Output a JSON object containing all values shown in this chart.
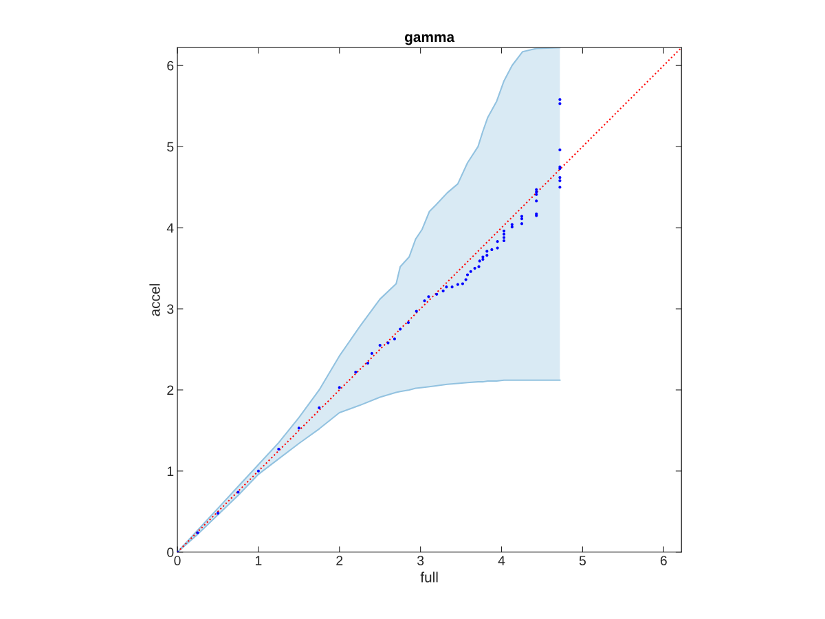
{
  "chart_data": {
    "type": "scatter",
    "title": "gamma",
    "xlabel": "full",
    "ylabel": "accel",
    "xlim": [
      0,
      6.22
    ],
    "ylim": [
      0,
      6.22
    ],
    "xticks": [
      0,
      1,
      2,
      3,
      4,
      5,
      6
    ],
    "yticks": [
      0,
      1,
      2,
      3,
      4,
      5,
      6
    ],
    "grid": false,
    "legend": false,
    "series": [
      {
        "type": "line",
        "line_style": "solid",
        "marker": "none",
        "color": "#92c2e0",
        "x": [
          0,
          0.25,
          0.5,
          0.75,
          1,
          1.25,
          1.5,
          1.75,
          2,
          2.25,
          2.5,
          2.7,
          2.75,
          2.86,
          2.94,
          3.02,
          3.11,
          3.19,
          3.33,
          3.46,
          3.58,
          3.71,
          3.77,
          3.83,
          3.94,
          4.03,
          4.13,
          4.26,
          4.43,
          4.72
        ],
        "values": [
          0,
          0.22,
          0.46,
          0.7,
          0.96,
          1.15,
          1.34,
          1.52,
          1.72,
          1.81,
          1.91,
          1.97,
          1.98,
          2.0,
          2.02,
          2.03,
          2.04,
          2.05,
          2.07,
          2.08,
          2.09,
          2.1,
          2.1,
          2.11,
          2.11,
          2.12,
          2.12,
          2.12,
          2.12,
          2.12
        ],
        "lower": [
          0,
          0.22,
          0.46,
          0.7,
          0.96,
          1.15,
          1.34,
          1.52,
          1.72,
          1.81,
          1.91,
          1.97,
          1.98,
          2.0,
          2.02,
          2.03,
          2.04,
          2.05,
          2.07,
          2.08,
          2.09,
          2.1,
          2.1,
          2.11,
          2.11,
          2.12,
          2.12,
          2.12,
          2.12,
          2.12
        ],
        "upper": [
          0,
          0.27,
          0.54,
          0.81,
          1.08,
          1.35,
          1.66,
          2.0,
          2.42,
          2.78,
          3.12,
          3.31,
          3.52,
          3.64,
          3.86,
          3.98,
          4.2,
          4.28,
          4.43,
          4.54,
          4.8,
          5.0,
          5.19,
          5.36,
          5.56,
          5.81,
          6.0,
          6.17,
          6.21,
          6.22
        ]
      },
      {
        "type": "line",
        "line_style": "solid",
        "marker": "none",
        "color": "#92c2e0",
        "x": [
          0,
          0.25,
          0.5,
          0.75,
          1,
          1.25,
          1.5,
          1.75,
          2,
          2.25,
          2.5,
          2.7,
          2.75,
          2.86,
          2.94,
          3.02,
          3.11,
          3.19,
          3.33,
          3.46,
          3.58,
          3.71,
          3.77,
          3.83,
          3.94,
          4.03,
          4.13,
          4.26,
          4.43,
          4.72
        ],
        "values": [
          0,
          0.27,
          0.54,
          0.81,
          1.08,
          1.35,
          1.66,
          2.0,
          2.42,
          2.78,
          3.12,
          3.31,
          3.52,
          3.64,
          3.86,
          3.98,
          4.2,
          4.28,
          4.43,
          4.54,
          4.8,
          5.0,
          5.19,
          5.36,
          5.56,
          5.81,
          6.0,
          6.17,
          6.21,
          6.22
        ]
      },
      {
        "type": "line",
        "color": "#ff0000",
        "line_style": "dotted",
        "marker": "none",
        "x": [
          0,
          6.22
        ],
        "values": [
          0,
          6.22
        ]
      },
      {
        "color": "#0000ff",
        "marker": "circle",
        "x": [
          0,
          0.25,
          0.5,
          0.75,
          1.0,
          1.25,
          1.5,
          1.75,
          2.0,
          2.2,
          2.35,
          2.4,
          2.5,
          2.6,
          2.68,
          2.75,
          2.85,
          2.95,
          3.05,
          3.1,
          3.2,
          3.28,
          3.32,
          3.39,
          3.46,
          3.52,
          3.56,
          3.58,
          3.62,
          3.67,
          3.72,
          3.73,
          3.77,
          3.77,
          3.82,
          3.82,
          3.88,
          3.95,
          3.95,
          4.03,
          4.03,
          4.03,
          4.03,
          4.13,
          4.13,
          4.25,
          4.25,
          4.25,
          4.43,
          4.43,
          4.43,
          4.43,
          4.43,
          4.43,
          4.72,
          4.72,
          4.72,
          4.72,
          4.72,
          4.72,
          4.72,
          4.72
        ],
        "values": [
          0,
          0.24,
          0.48,
          0.74,
          1.0,
          1.27,
          1.53,
          1.78,
          2.03,
          2.22,
          2.33,
          2.45,
          2.55,
          2.58,
          2.63,
          2.75,
          2.83,
          2.97,
          3.1,
          3.15,
          3.18,
          3.22,
          3.27,
          3.27,
          3.3,
          3.31,
          3.36,
          3.42,
          3.46,
          3.5,
          3.52,
          3.59,
          3.61,
          3.64,
          3.66,
          3.71,
          3.73,
          3.75,
          3.83,
          3.84,
          3.88,
          3.92,
          3.96,
          4.01,
          4.04,
          4.05,
          4.11,
          4.14,
          4.15,
          4.17,
          4.33,
          4.41,
          4.44,
          4.47,
          4.5,
          4.58,
          4.62,
          4.73,
          4.75,
          4.96,
          5.53,
          5.58
        ]
      }
    ]
  }
}
